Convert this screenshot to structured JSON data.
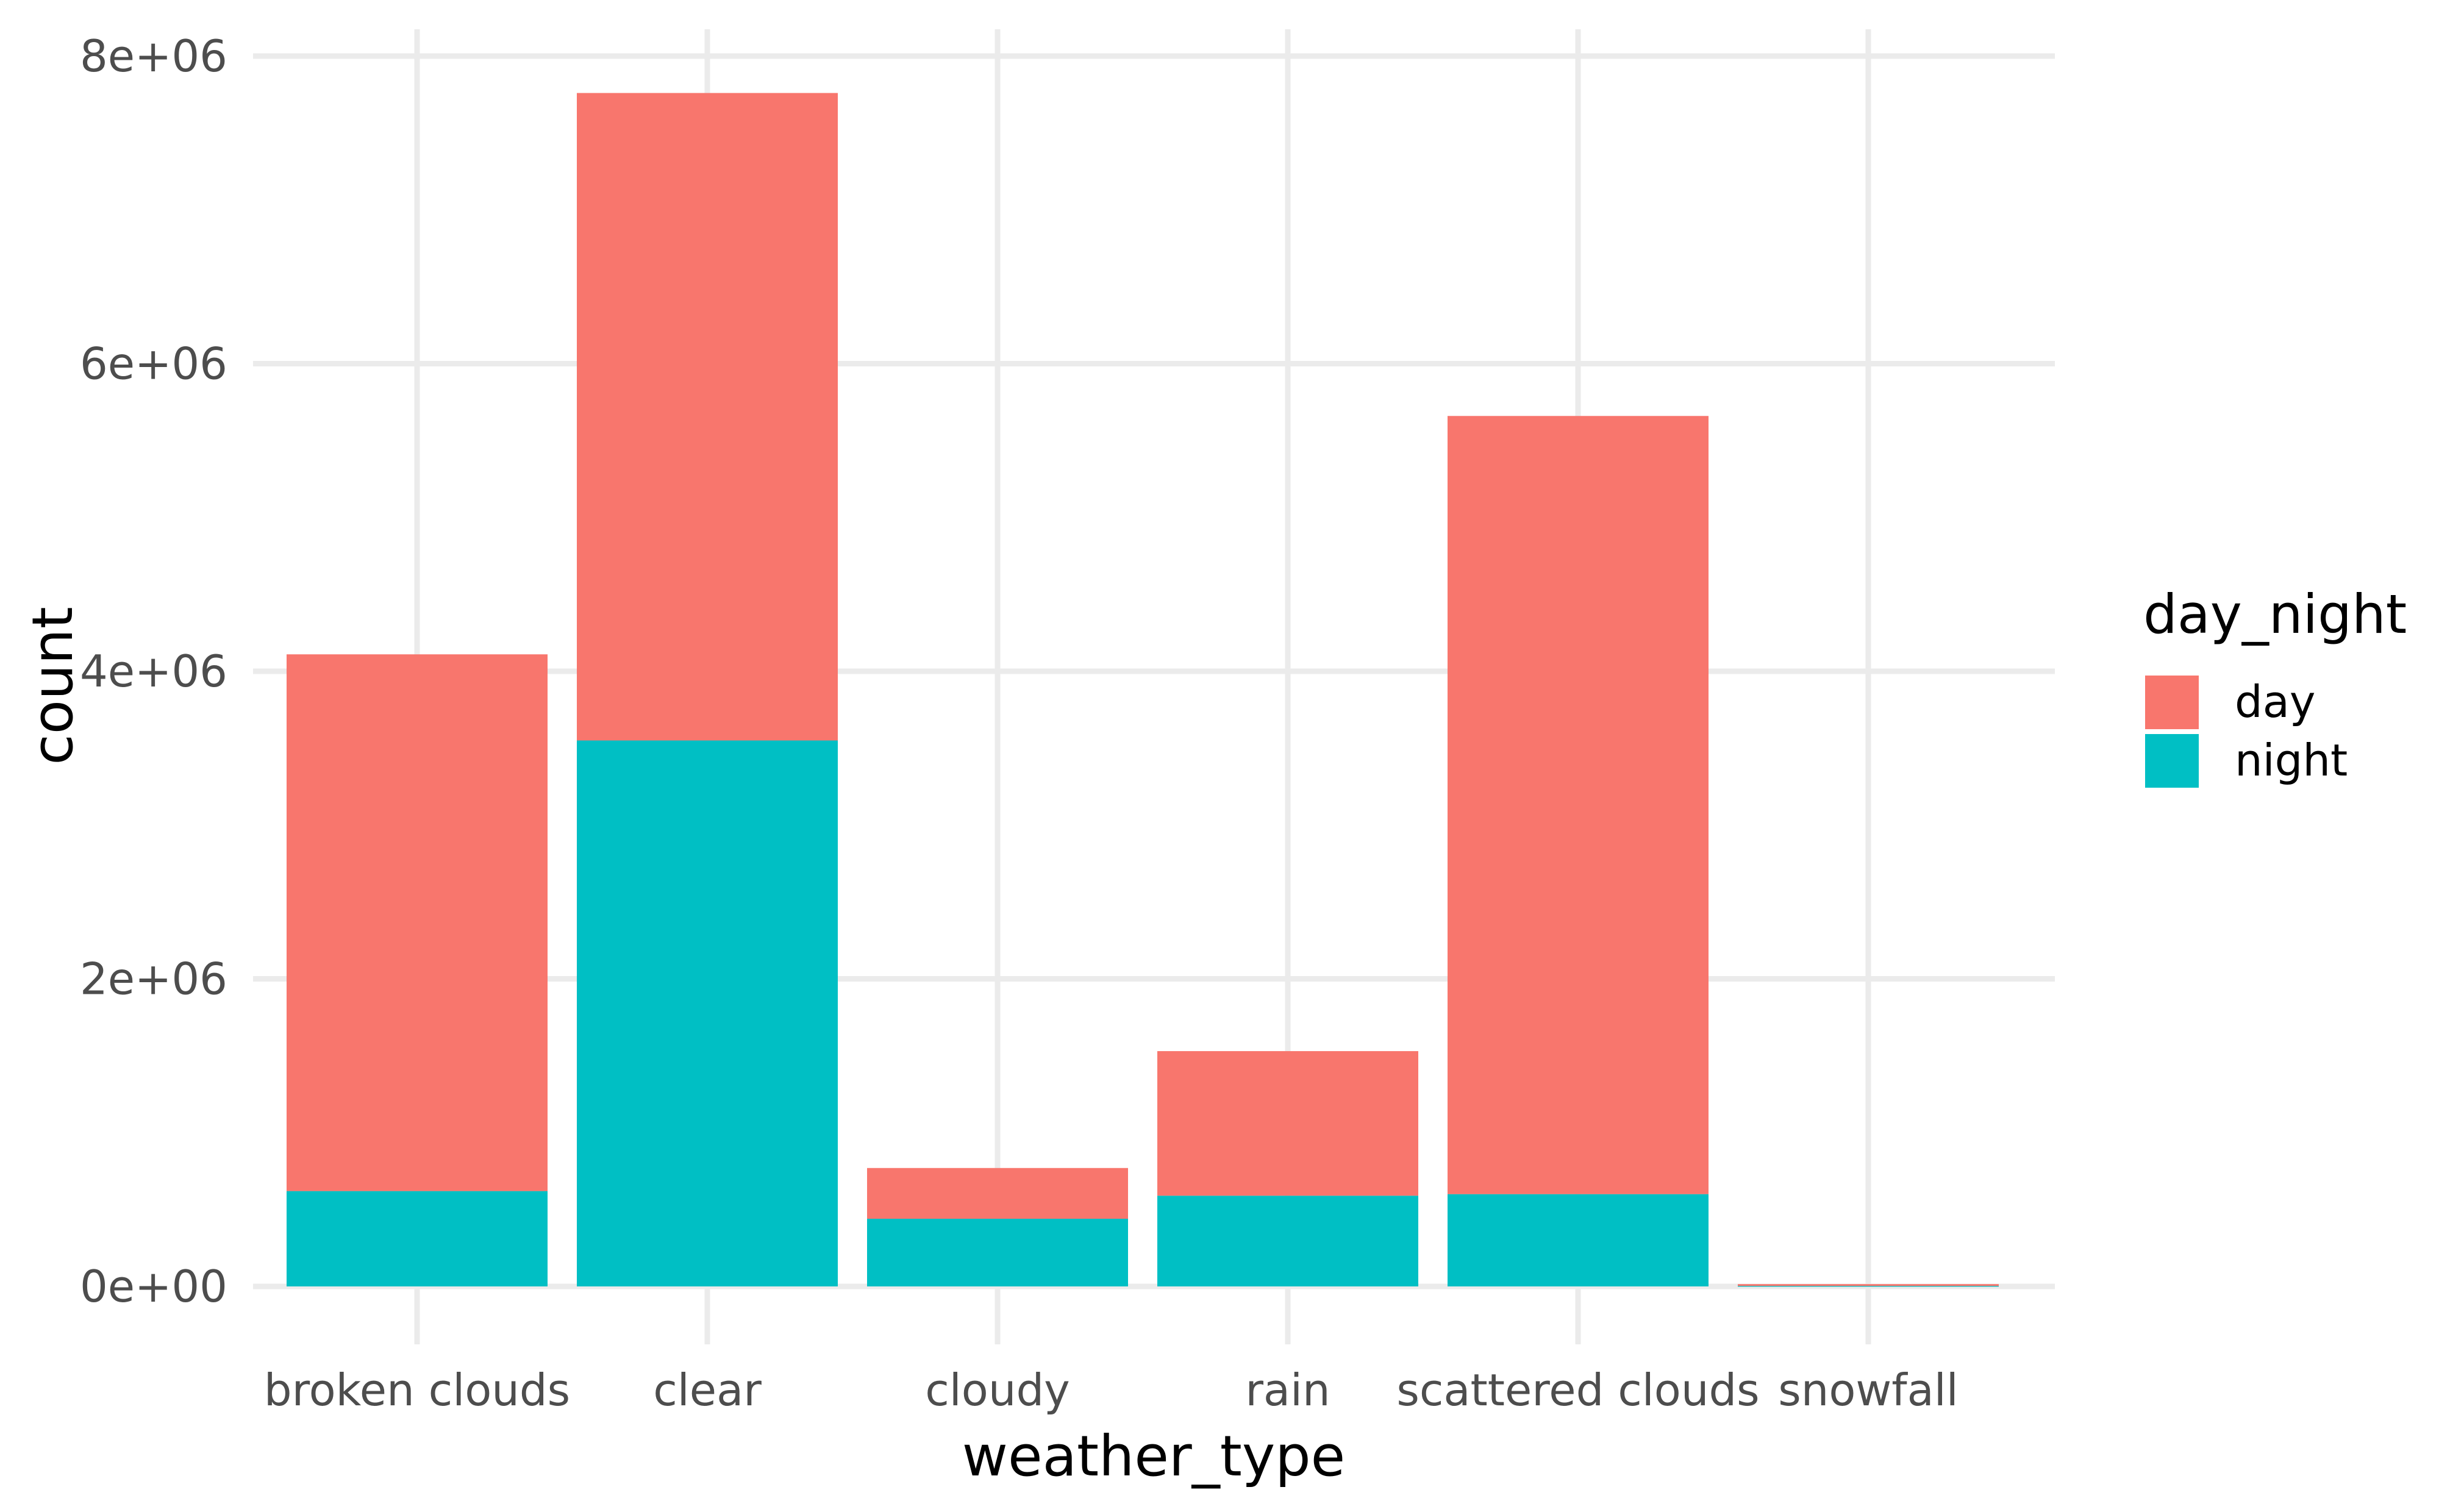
{
  "chart_data": {
    "type": "bar",
    "stacked": true,
    "title": "",
    "xlabel": "weather_type",
    "ylabel": "count",
    "categories": [
      "broken clouds",
      "clear",
      "cloudy",
      "rain",
      "scattered clouds",
      "snowfall"
    ],
    "series": [
      {
        "name": "day",
        "color": "#F8766D",
        "values": [
          3490000,
          4210000,
          330000,
          940000,
          5060000,
          5000
        ]
      },
      {
        "name": "night",
        "color": "#00BFC4",
        "values": [
          620000,
          3550000,
          440000,
          590000,
          600000,
          10000
        ]
      }
    ],
    "ylim": [
      0,
      8000000
    ],
    "yticks": [
      0,
      2000000,
      4000000,
      6000000,
      8000000
    ],
    "ytick_labels": [
      "0e+00",
      "2e+06",
      "4e+06",
      "6e+06",
      "8e+06"
    ],
    "grid": true,
    "legend": {
      "title": "day_night",
      "position": "right",
      "entries": [
        "day",
        "night"
      ]
    }
  }
}
